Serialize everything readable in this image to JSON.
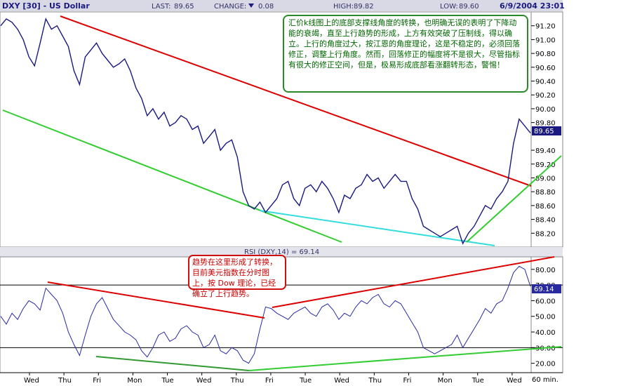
{
  "header": {
    "symbol": "DXY [30] - US Dollar",
    "last_label": "LAST:",
    "last_value": "89.65",
    "change_label": "CHANGE:",
    "change_value": "0.08",
    "high_label": "HIGH:",
    "high_value": "89.82",
    "low_label": "LOW:",
    "low_value": "89.60",
    "datetime": "6/9/2004 23:01"
  },
  "colors": {
    "price": "#1a1a80",
    "resistance": "#dd0000",
    "support": "#33cc33",
    "channel": "#33dddd",
    "rsi": "#2a2aa0"
  },
  "annotations": {
    "top": "汇价k线图上的底部支撑线角度的转换，也明确无误的表明了下降动能的衰竭，直至上行趋势的形成，上方有效突破了压制线，得以确立。上行的角度过大，按江恩的角度理论，这是不稳定的，必须回落修正，调整上行角度。然而，回落修正的幅度将不是很大，尽管指标有很大的修正空间，但是，极易形成底部看涨翻转形态，警惕！",
    "bottom": "趋势在这里形成了转换，目前美元指数在分时图上，按 Dow 理论，已经确立了上行趋势。"
  },
  "chart_data": [
    {
      "type": "line",
      "name": "price",
      "ylim": [
        88.0,
        91.4
      ],
      "yticks": [
        "91.20",
        "91.00",
        "90.80",
        "90.60",
        "90.40",
        "90.20",
        "90.00",
        "89.80",
        "89.40",
        "89.20",
        "89.00",
        "88.80",
        "88.60",
        "88.40",
        "88.20"
      ],
      "last_label": "89.65",
      "x_labels": [
        "Wed",
        "Thu",
        "Fri",
        "Mon",
        "Tue",
        "Wed",
        "Thu",
        "Fri",
        "Tue",
        "Wed",
        "Thu",
        "Fri",
        "Mon",
        "Tue",
        "Wed"
      ],
      "x_unit": "60 min.",
      "x": [
        0,
        8,
        16,
        24,
        32,
        40,
        48,
        56,
        64,
        72,
        80,
        88,
        96,
        104,
        112,
        120,
        128,
        136,
        144,
        152,
        160,
        168,
        176,
        184,
        192,
        200,
        208,
        216,
        224,
        232,
        240,
        248,
        256,
        264,
        272,
        280,
        288,
        296,
        304,
        312,
        320,
        328,
        336,
        344,
        352,
        360,
        368,
        376,
        384,
        392,
        400,
        408,
        416,
        424,
        432,
        440,
        448,
        456,
        464,
        472,
        480,
        488,
        496,
        504,
        512,
        520,
        528,
        536,
        544,
        552,
        560,
        568,
        576,
        584,
        592,
        600,
        608,
        616,
        624,
        632,
        640,
        648,
        656,
        664,
        672,
        680,
        688,
        696,
        704,
        712,
        720,
        728,
        736,
        744,
        752
      ],
      "values": [
        91.2,
        91.3,
        91.25,
        91.15,
        91.0,
        90.75,
        90.62,
        90.95,
        91.3,
        91.15,
        91.2,
        91.05,
        90.9,
        90.55,
        90.35,
        90.75,
        90.85,
        90.95,
        90.8,
        90.7,
        90.6,
        90.65,
        90.72,
        90.55,
        90.3,
        90.15,
        89.9,
        90.0,
        89.85,
        89.95,
        89.75,
        89.8,
        89.9,
        89.85,
        89.7,
        89.75,
        89.5,
        89.6,
        89.7,
        89.4,
        89.5,
        89.55,
        89.3,
        88.8,
        88.6,
        88.55,
        88.65,
        88.5,
        88.6,
        88.7,
        88.9,
        88.95,
        88.7,
        88.6,
        88.85,
        88.9,
        88.8,
        88.95,
        88.85,
        88.7,
        88.5,
        88.75,
        88.7,
        88.85,
        88.9,
        89.05,
        88.95,
        89.0,
        88.85,
        88.95,
        89.05,
        88.95,
        88.95,
        88.7,
        88.55,
        88.3,
        88.25,
        88.2,
        88.15,
        88.2,
        88.25,
        88.3,
        88.05,
        88.2,
        88.3,
        88.45,
        88.6,
        88.55,
        88.7,
        88.8,
        88.95,
        89.5,
        89.85,
        89.75,
        89.65
      ]
    },
    {
      "type": "line",
      "name": "RSI",
      "title": "RSI (DXY,14) = 69.14",
      "ylim": [
        14.0,
        88.0
      ],
      "yticks": [
        "80.00",
        "70.00",
        "60.00",
        "50.00",
        "40.00",
        "30.00",
        "20.00"
      ],
      "last_label": "69.14",
      "reference_levels": [
        70,
        30
      ],
      "x": [
        0,
        8,
        16,
        24,
        32,
        40,
        48,
        56,
        64,
        72,
        80,
        88,
        96,
        104,
        112,
        120,
        128,
        136,
        144,
        152,
        160,
        168,
        176,
        184,
        192,
        200,
        208,
        216,
        224,
        232,
        240,
        248,
        256,
        264,
        272,
        280,
        288,
        296,
        304,
        312,
        320,
        328,
        336,
        344,
        352,
        360,
        368,
        376,
        384,
        392,
        400,
        408,
        416,
        424,
        432,
        440,
        448,
        456,
        464,
        472,
        480,
        488,
        496,
        504,
        512,
        520,
        528,
        536,
        544,
        552,
        560,
        568,
        576,
        584,
        592,
        600,
        608,
        616,
        624,
        632,
        640,
        648,
        656,
        664,
        672,
        680,
        688,
        696,
        704,
        712,
        720,
        728,
        736,
        744,
        752
      ],
      "values": [
        50,
        45,
        52,
        48,
        55,
        60,
        58,
        54,
        68,
        64,
        60,
        52,
        40,
        32,
        25,
        38,
        50,
        58,
        62,
        55,
        48,
        44,
        40,
        38,
        35,
        28,
        24,
        30,
        38,
        40,
        34,
        36,
        42,
        44,
        40,
        38,
        30,
        32,
        38,
        28,
        26,
        30,
        28,
        22,
        20,
        26,
        42,
        56,
        55,
        52,
        50,
        48,
        52,
        54,
        56,
        52,
        50,
        56,
        58,
        54,
        48,
        52,
        50,
        56,
        60,
        58,
        62,
        64,
        58,
        56,
        60,
        58,
        52,
        46,
        40,
        30,
        28,
        26,
        28,
        30,
        32,
        38,
        30,
        36,
        42,
        48,
        55,
        52,
        58,
        60,
        68,
        78,
        82,
        80,
        69.14
      ]
    }
  ]
}
